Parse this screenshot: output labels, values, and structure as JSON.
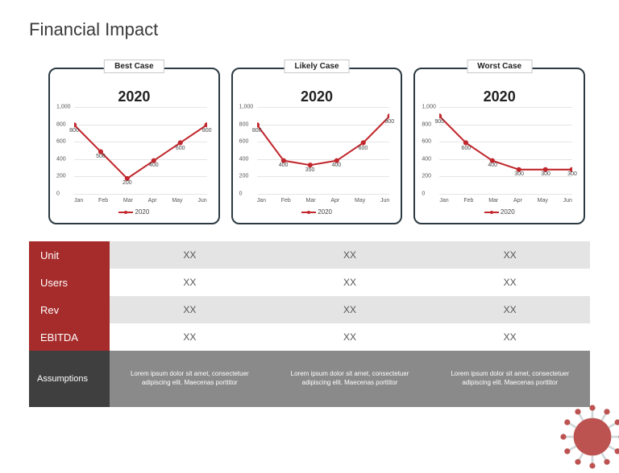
{
  "title": "Financial Impact",
  "chart_style": {
    "border_color": "#2b3a42",
    "border_radius": 10,
    "line_color": "#c1272d",
    "marker_color": "#c1272d",
    "marker_radius": 3,
    "line_width": 2,
    "grid_color": "#e5e5e5",
    "year_fontsize": 18,
    "label_fontsize": 10,
    "tick_fontsize": 7,
    "ylim": [
      0,
      1000
    ],
    "ytick_step": 200,
    "yticks": [
      "0",
      "200",
      "400",
      "600",
      "800",
      "1,000"
    ],
    "categories": [
      "Jan",
      "Feb",
      "Mar",
      "Apr",
      "May",
      "Jun"
    ],
    "legend_label": "2020"
  },
  "charts": [
    {
      "label": "Best Case",
      "year": "2020",
      "values": [
        800,
        500,
        200,
        400,
        600,
        800
      ]
    },
    {
      "label": "Likely Case",
      "year": "2020",
      "values": [
        800,
        400,
        350,
        400,
        600,
        900
      ]
    },
    {
      "label": "Worst Case",
      "year": "2020",
      "values": [
        900,
        600,
        400,
        300,
        300,
        300
      ]
    }
  ],
  "table": {
    "header_bg": "#a62c2c",
    "header_color": "#ffffff",
    "row_alt_bg": "#e4e4e4",
    "row_plain_bg": "#ffffff",
    "cell_color": "#555555",
    "rows": [
      {
        "name": "Unit",
        "cells": [
          "XX",
          "XX",
          "XX"
        ]
      },
      {
        "name": "Users",
        "cells": [
          "XX",
          "XX",
          "XX"
        ]
      },
      {
        "name": "Rev",
        "cells": [
          "XX",
          "XX",
          "XX"
        ]
      },
      {
        "name": "EBITDA",
        "cells": [
          "XX",
          "XX",
          "XX"
        ]
      }
    ],
    "assumptions": {
      "label": "Assumptions",
      "head_bg": "#3f3f3f",
      "body_bg": "#8a8a8a",
      "text_color": "#ffffff",
      "cells": [
        "Lorem ipsum dolor sit amet, consectetuer adipiscing elit. Maecenas porttitor",
        "Lorem ipsum dolor sit amet, consectetuer adipiscing elit. Maecenas porttitor",
        "Lorem ipsum dolor sit amet, consectetuer adipiscing elit. Maecenas porttitor"
      ]
    }
  },
  "virus_icon": {
    "base_color": "#b94a48",
    "spike_color": "#cfd5d8"
  }
}
